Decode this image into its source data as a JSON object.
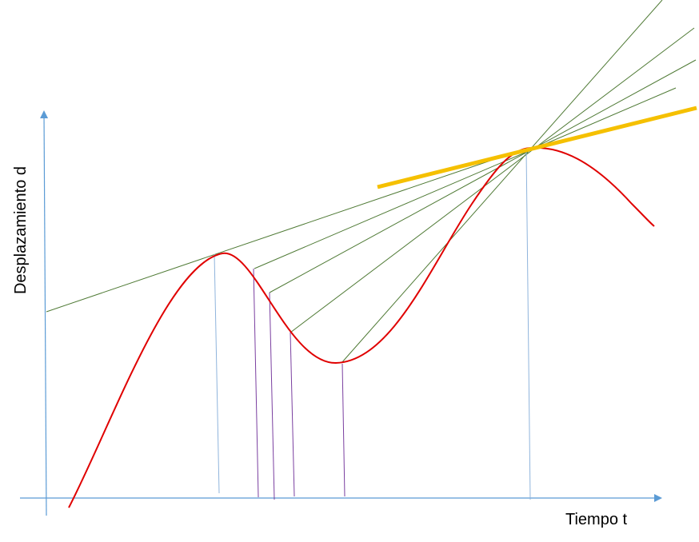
{
  "labels": {
    "y_axis": "Desplazamiento d",
    "x_axis": "Tiempo t"
  },
  "colors": {
    "axis": "#5b9bd5",
    "curve": "#e00000",
    "secant": "#4f7a35",
    "tangent": "#f5c000",
    "drop_line_main": "#8fb4dc",
    "drop_line_secant": "#7a3fa0"
  },
  "elements": {
    "secant_count": 5,
    "curve": "displacement over time",
    "tangent": "tangent at fixed point"
  }
}
